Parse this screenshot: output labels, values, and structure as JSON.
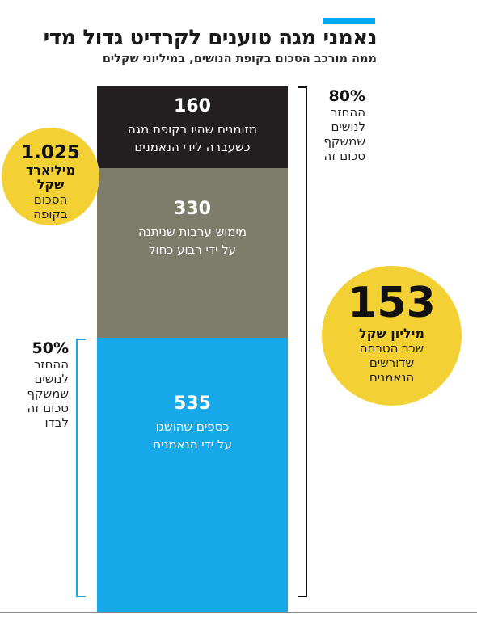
{
  "title": "נאמני מגה טוענים לקרדיט גדול מדי",
  "subtitle": "ממה מורכב הסכום בקופת הנושים, במיליוני שקלים",
  "colors": {
    "accent": "#00a9ef",
    "circle": "#f3d034"
  },
  "chart_data": {
    "type": "bar",
    "stacked": true,
    "unit": "מיליוני שקלים",
    "segments": [
      {
        "value": 535,
        "value_label": "535",
        "label_lines": [
          "כספים שהושגו",
          "על ידי הנאמנים"
        ],
        "color": "#16a8e8",
        "text_color": "#ffffff"
      },
      {
        "value": 330,
        "value_label": "330",
        "label_lines": [
          "מימוש ערבות שניתנה",
          "על ידי רבוע כחול"
        ],
        "color": "#7e7d6b",
        "text_color": "#ffffff"
      },
      {
        "value": 160,
        "value_label": "160",
        "label_lines": [
          "מזומנים שהיו בקופת מגה",
          "כשעברה לידי הנאמנים"
        ],
        "color": "#231f20",
        "text_color": "#ffffff"
      }
    ],
    "total": {
      "amount": "1.025",
      "unit": "מיליארד",
      "unit2": "שקל",
      "line1": "הסכום",
      "line2": "בקופה"
    },
    "bracket_top": {
      "pct": "80%",
      "lines": [
        "ההחזר",
        "לנושים",
        "שמשקף",
        "סכום זה"
      ]
    },
    "bracket_bottom": {
      "pct": "50%",
      "lines": [
        "ההחזר",
        "לנושים",
        "שמשקף",
        "סכום זה",
        "לבדו"
      ]
    },
    "fee": {
      "amount": "153",
      "unit": "מיליון שקל",
      "lines": [
        "שכר הטרחה",
        "שדורשים",
        "הנאמנים"
      ]
    }
  }
}
